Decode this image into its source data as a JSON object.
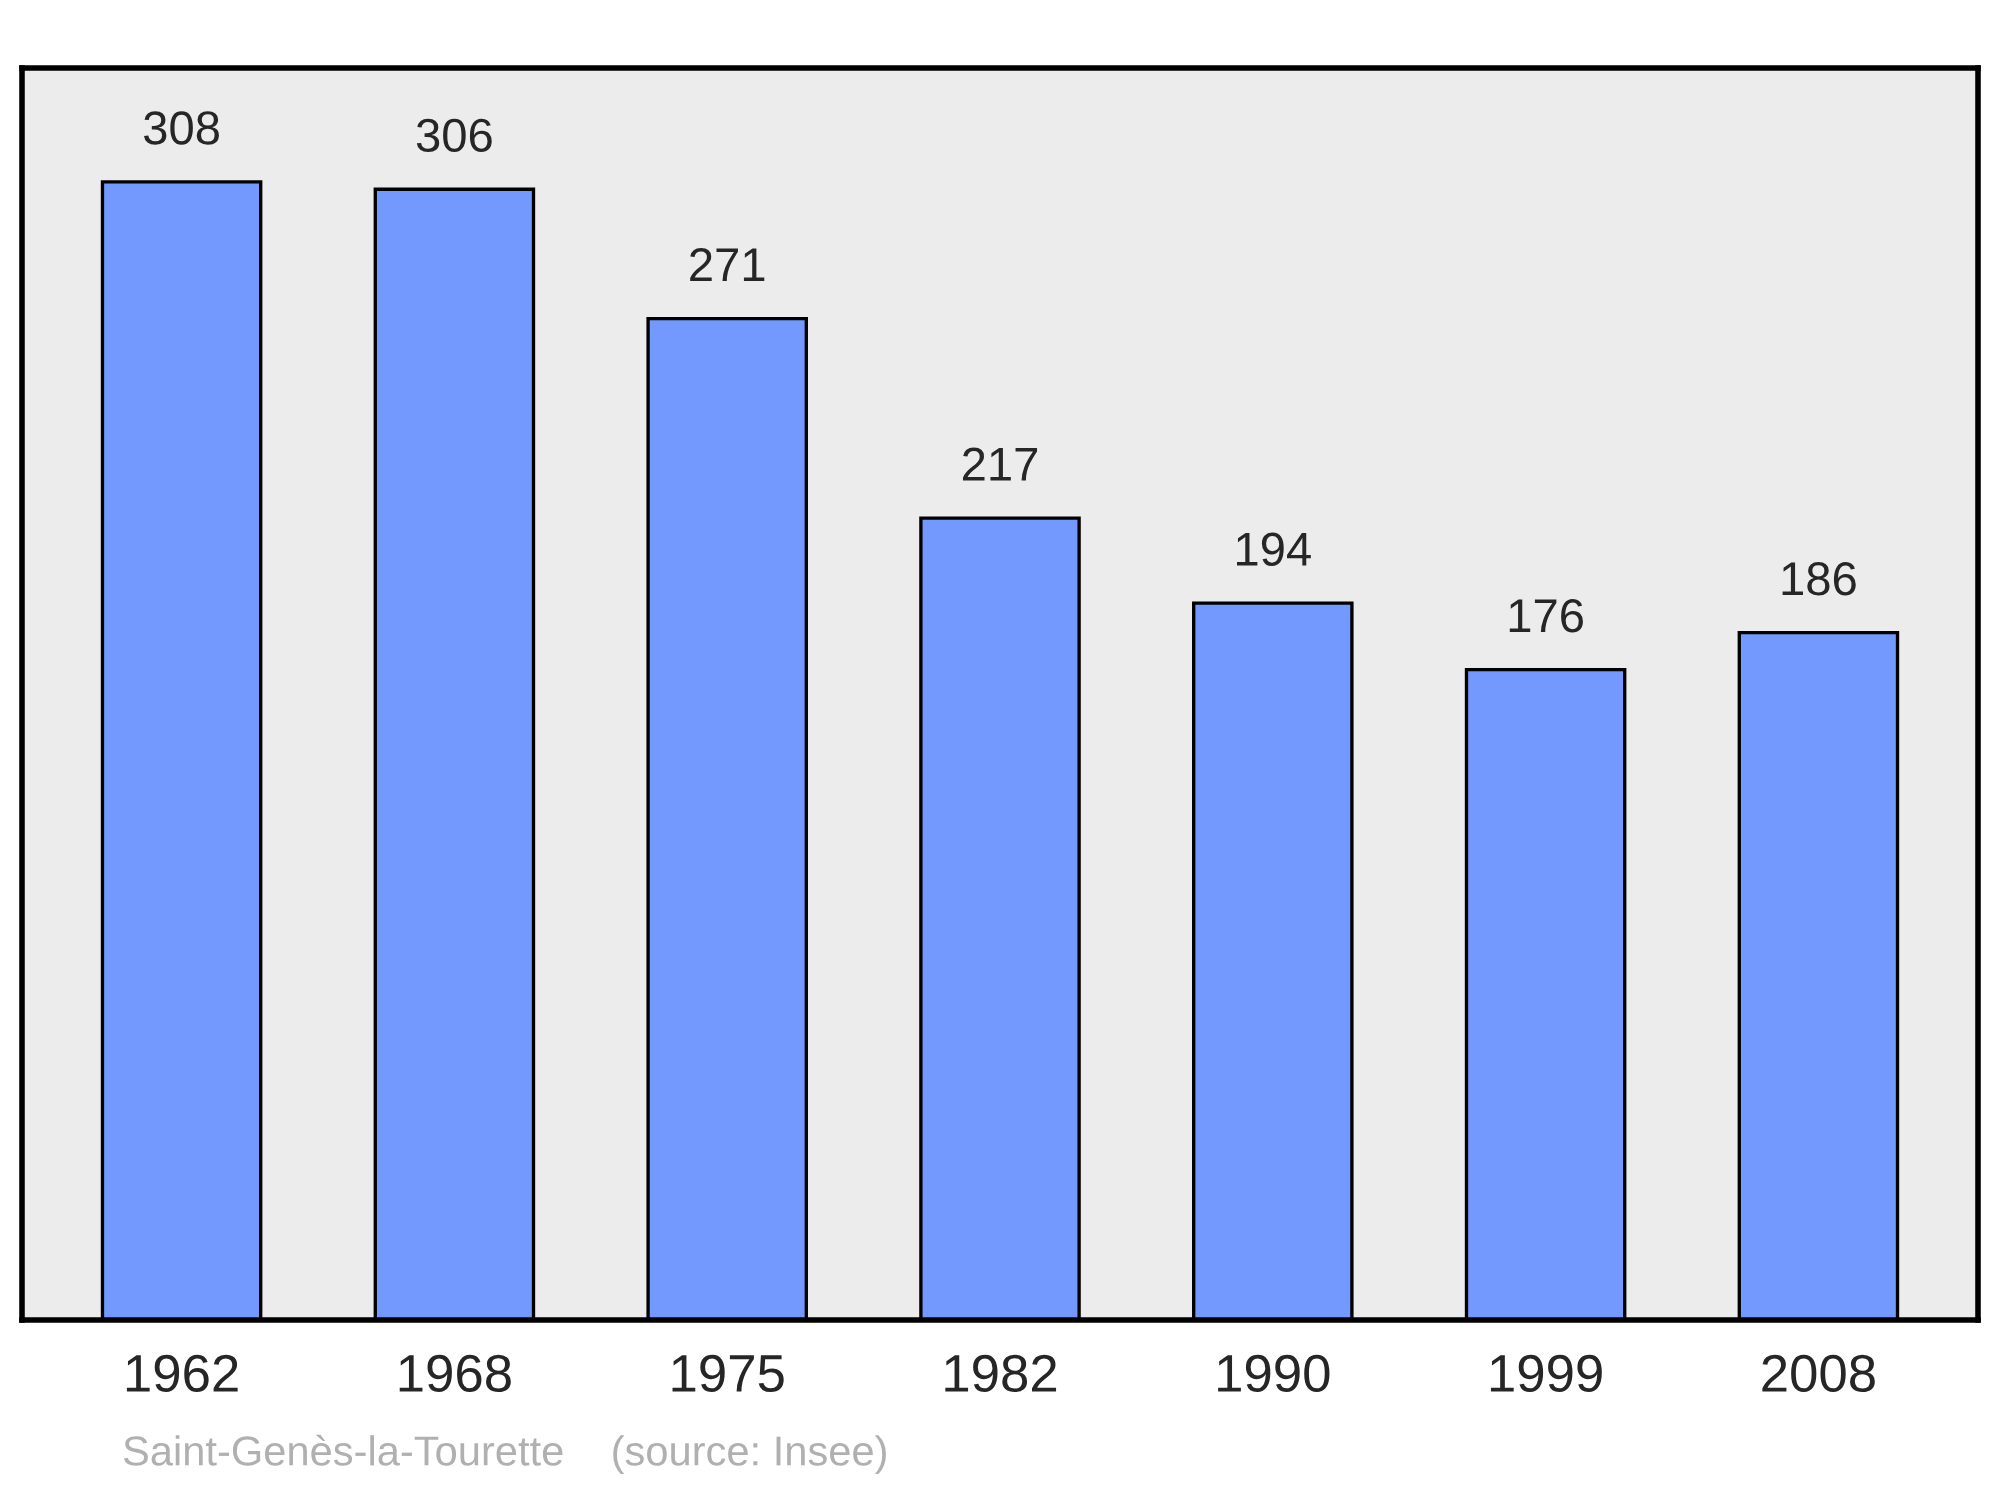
{
  "chart_data": {
    "type": "bar",
    "categories": [
      "1962",
      "1968",
      "1975",
      "1982",
      "1990",
      "1999",
      "2008"
    ],
    "values": [
      308,
      306,
      271,
      217,
      194,
      176,
      186
    ],
    "color": "#7399ff",
    "data_labels": true,
    "grid": false,
    "annotations": [
      "Saint-Genès-la-Tourette    (source: Insee)"
    ]
  }
}
